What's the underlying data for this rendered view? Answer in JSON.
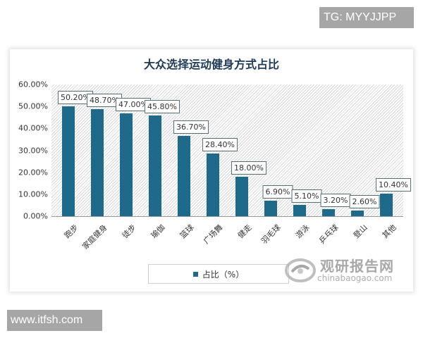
{
  "watermarks": {
    "top": "TG: MYYJJPP",
    "bottom": "www.itfsh.com"
  },
  "logo": {
    "cn": "观研报告网",
    "en": "chinabaogao.com"
  },
  "chart_data": {
    "type": "bar",
    "title": "大众选择运动健身方式占比",
    "xlabel": "",
    "ylabel": "",
    "categories": [
      "跑步",
      "家庭健身",
      "徒步",
      "瑜伽",
      "篮球",
      "广场舞",
      "健走",
      "羽毛球",
      "游泳",
      "乒乓球",
      "登山",
      "其他"
    ],
    "values": [
      50.2,
      48.7,
      47.0,
      45.8,
      36.7,
      28.4,
      18.0,
      6.9,
      5.1,
      3.2,
      2.6,
      10.4
    ],
    "value_labels": [
      "50.20%",
      "48.70%",
      "47.00%",
      "45.80%",
      "36.70%",
      "28.40%",
      "18.00%",
      "6.90%",
      "5.10%",
      "3.20%",
      "2.60%",
      "10.40%"
    ],
    "series": [
      {
        "name": "占比（%）",
        "color": "#1d6a8a"
      }
    ],
    "ylim": [
      0,
      60
    ],
    "yticks": [
      "0.00%",
      "10.00%",
      "20.00%",
      "30.00%",
      "40.00%",
      "50.00%",
      "60.00%"
    ],
    "grid": false,
    "legend_position": "bottom",
    "legend": [
      "占比（%）"
    ]
  }
}
